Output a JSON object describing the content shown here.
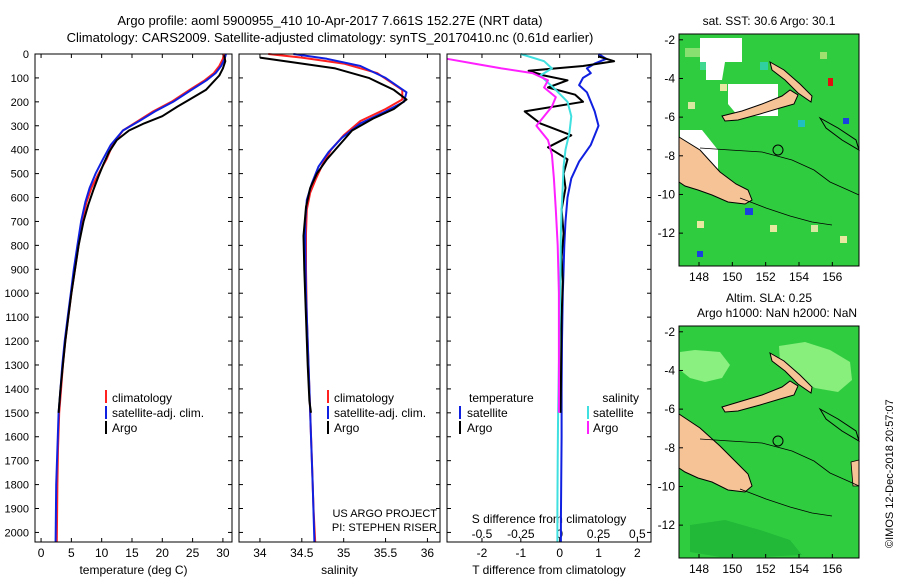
{
  "title": {
    "line1": "Argo profile: aoml 5900955_410 10-Apr-2017 7.661S 152.27E (NRT data)",
    "line2": "Climatology: CARS2009. Satellite-adjusted climatology: synTS_20170410.nc (0.61d earlier)"
  },
  "colors": {
    "argo": "#000000",
    "climatology": "#ff2020",
    "satellite": "#1020e0",
    "sat_salinity": "#40e0e0",
    "argo_salinity_diff": "#ff20ff",
    "land": "#f5c396",
    "ocean": "#30cc40"
  },
  "depth_axis": {
    "ticks": [
      0,
      100,
      200,
      300,
      400,
      500,
      600,
      700,
      800,
      900,
      1000,
      1100,
      1200,
      1300,
      1400,
      1500,
      1600,
      1700,
      1800,
      1900,
      2000
    ],
    "labels": [
      "0",
      "100",
      "200",
      "300",
      "400",
      "500",
      "600",
      "700",
      "800",
      "900",
      "1000",
      "1100",
      "1200",
      "1300",
      "1400",
      "1500",
      "1600",
      "1700",
      "1800",
      "1900",
      "2000"
    ],
    "range": [
      0,
      2040
    ]
  },
  "legend": {
    "climatology": "climatology",
    "satellite_adj": "satellite-adj. clim.",
    "argo": "Argo",
    "temperature_header": "temperature",
    "salinity_header": "salinity",
    "satellite": "satellite"
  },
  "credits": {
    "line1": "US ARGO PROJECT",
    "line2": "PI: STEPHEN RISER"
  },
  "map_top": {
    "title": "sat. SST: 30.6 Argo: 30.1",
    "xticks": [
      "148",
      "150",
      "152",
      "154",
      "156"
    ],
    "yticks": [
      "-2",
      "-4",
      "-6",
      "-8",
      "-10",
      "-12"
    ]
  },
  "map_bottom": {
    "title1": "Altim. SLA: 0.25",
    "title2": "Argo h1000: NaN h2000: NaN",
    "xticks": [
      "148",
      "150",
      "152",
      "154",
      "156"
    ],
    "yticks": [
      "-2",
      "-4",
      "-6",
      "-8",
      "-10",
      "-12"
    ]
  },
  "side_stamp": "©IMOS 12-Dec-2018 20:57:07",
  "chart_data": [
    {
      "type": "line",
      "title": "",
      "xlabel": "temperature (deg C)",
      "ylabel": "",
      "xlim": [
        -1,
        31.5
      ],
      "ylim": [
        2040,
        0
      ],
      "xticks": [
        0,
        5,
        10,
        15,
        20,
        25,
        30
      ],
      "xticklabels": [
        "0",
        "5",
        "10",
        "15",
        "20",
        "25",
        "30"
      ],
      "series": [
        {
          "name": "climatology",
          "color": "#ff2020",
          "x": [
            30.2,
            30.0,
            29.4,
            28.5,
            27.0,
            24.5,
            21.5,
            18.5,
            16.0,
            13.5,
            11.8,
            10.8,
            9.5,
            8.3,
            7.5,
            6.8,
            6.2,
            5.6,
            5.0,
            4.5,
            4.0,
            3.6,
            3.3,
            3.0,
            2.8,
            2.7,
            2.6
          ],
          "y": [
            0,
            20,
            50,
            80,
            110,
            150,
            200,
            240,
            280,
            320,
            380,
            440,
            500,
            560,
            620,
            700,
            800,
            900,
            1000,
            1100,
            1200,
            1300,
            1400,
            1500,
            1650,
            1800,
            2040
          ]
        },
        {
          "name": "satellite-adj. clim.",
          "color": "#1020e0",
          "x": [
            30.5,
            30.3,
            29.7,
            28.8,
            27.3,
            24.8,
            21.8,
            18.8,
            16.2,
            13.5,
            11.5,
            10.2,
            9.0,
            8.0,
            7.3,
            6.6,
            6.0,
            5.4,
            4.9,
            4.4,
            3.9,
            3.5,
            3.2,
            2.9,
            2.7,
            2.5,
            2.4
          ],
          "y": [
            0,
            20,
            50,
            80,
            110,
            150,
            200,
            240,
            280,
            320,
            380,
            440,
            500,
            560,
            620,
            700,
            800,
            900,
            1000,
            1100,
            1200,
            1300,
            1400,
            1500,
            1650,
            1800,
            2040
          ]
        },
        {
          "name": "Argo",
          "color": "#000000",
          "x": [
            30.2,
            30.4,
            30.0,
            29.4,
            28.3,
            27.2,
            24.5,
            22.5,
            20.0,
            17.0,
            14.5,
            12.5,
            11.2,
            10.3,
            9.5,
            8.6,
            7.8,
            7.0,
            6.2,
            5.6,
            5.0,
            4.5,
            4.0,
            3.6,
            3.2,
            2.9
          ],
          "y": [
            5,
            30,
            60,
            90,
            120,
            150,
            190,
            220,
            260,
            290,
            320,
            360,
            410,
            460,
            510,
            570,
            630,
            700,
            800,
            900,
            1000,
            1100,
            1200,
            1300,
            1400,
            1500
          ]
        }
      ]
    },
    {
      "type": "line",
      "title": "",
      "xlabel": "salinity",
      "ylabel": "",
      "xlim": [
        33.75,
        36.15
      ],
      "ylim": [
        2040,
        0
      ],
      "xticks": [
        34,
        34.5,
        35,
        35.5,
        36
      ],
      "xticklabels": [
        "34",
        "34.5",
        "35",
        "35.5",
        "36"
      ],
      "series": [
        {
          "name": "climatology",
          "color": "#ff2020",
          "x": [
            34.1,
            34.5,
            35.0,
            35.4,
            35.7,
            35.7,
            35.5,
            35.2,
            35.0,
            34.85,
            34.75,
            34.67,
            34.6,
            34.56,
            34.55,
            34.55,
            34.56,
            34.58,
            34.6,
            34.62,
            34.64,
            34.66
          ],
          "y": [
            0,
            15,
            40,
            80,
            150,
            190,
            230,
            280,
            340,
            400,
            460,
            520,
            580,
            650,
            750,
            900,
            1100,
            1300,
            1500,
            1700,
            1900,
            2040
          ]
        },
        {
          "name": "satellite-adj. clim.",
          "color": "#1020e0",
          "x": [
            34.4,
            34.8,
            35.2,
            35.5,
            35.75,
            35.72,
            35.5,
            35.2,
            34.98,
            34.82,
            34.7,
            34.62,
            34.56,
            34.54,
            34.54,
            34.55,
            34.57,
            34.59,
            34.61,
            34.63,
            34.65
          ],
          "y": [
            0,
            20,
            50,
            100,
            160,
            200,
            240,
            290,
            350,
            410,
            470,
            540,
            610,
            700,
            800,
            1000,
            1200,
            1400,
            1600,
            1800,
            2040
          ]
        },
        {
          "name": "Argo",
          "color": "#000000",
          "x": [
            34.0,
            34.4,
            34.9,
            35.3,
            35.6,
            35.75,
            35.6,
            35.35,
            35.1,
            34.95,
            34.8,
            34.68,
            34.6,
            34.55,
            34.52,
            34.53,
            34.55,
            34.57,
            34.59,
            34.61
          ],
          "y": [
            15,
            35,
            60,
            100,
            150,
            190,
            230,
            270,
            320,
            380,
            440,
            500,
            560,
            640,
            760,
            900,
            1100,
            1300,
            1450,
            1500
          ]
        }
      ]
    },
    {
      "type": "line",
      "title": "",
      "xlabel": "T difference from climatology",
      "ylabel": "",
      "xlim": [
        -2.9,
        2.35
      ],
      "ylim": [
        2040,
        0
      ],
      "xticks": [
        -2,
        -1,
        0,
        1,
        2
      ],
      "xticklabels": [
        "-2",
        "-1",
        "0",
        "1",
        "2"
      ],
      "secondary_xticklabels": [
        "-0.5",
        "-0.25",
        "0",
        "0.25",
        "0.5"
      ],
      "secondary_xlabel": "S difference from climatology",
      "series": [
        {
          "name": "temperature satellite",
          "color": "#1020e0",
          "x": [
            1.0,
            1.2,
            0.9,
            0.7,
            0.8,
            0.6,
            0.5,
            0.7,
            0.8,
            0.9,
            1.0,
            0.8,
            0.5,
            0.3,
            0.2,
            0.15,
            0.12,
            0.1,
            0.08,
            0.06,
            0.05,
            0.05,
            0.04,
            0.03,
            0.03
          ],
          "y": [
            0,
            20,
            40,
            60,
            80,
            100,
            130,
            160,
            200,
            240,
            300,
            380,
            450,
            520,
            600,
            700,
            800,
            900,
            1000,
            1200,
            1400,
            1600,
            1800,
            1950,
            2040
          ]
        },
        {
          "name": "temperature Argo",
          "color": "#000000",
          "x": [
            1.0,
            1.4,
            0.6,
            -0.8,
            -0.4,
            0.2,
            -0.3,
            0.4,
            0.6,
            -0.9,
            -0.5,
            0.3,
            -0.3,
            0.2,
            0.1,
            0.15,
            0.05,
            0.1,
            0.05,
            0.08,
            0.05,
            0.04,
            0.03,
            0.02
          ],
          "y": [
            10,
            30,
            50,
            70,
            90,
            110,
            140,
            170,
            200,
            240,
            290,
            340,
            390,
            440,
            500,
            560,
            650,
            750,
            850,
            950,
            1100,
            1250,
            1400,
            1500
          ]
        },
        {
          "name": "salinity satellite",
          "color": "#40e0e0",
          "x": [
            -1.0,
            -0.4,
            -0.2,
            -0.5,
            -0.3,
            -0.1,
            0.2,
            0.3,
            0.25,
            0.15,
            0.1,
            0.08,
            0.05,
            0.03,
            0.02,
            0.0,
            -0.02,
            -0.04,
            -0.05,
            -0.06,
            -0.06
          ],
          "y": [
            0,
            30,
            60,
            90,
            120,
            150,
            200,
            260,
            330,
            400,
            470,
            550,
            650,
            750,
            900,
            1100,
            1300,
            1500,
            1700,
            1900,
            2040
          ]
        },
        {
          "name": "salinity Argo",
          "color": "#ff20ff",
          "x": [
            -2.9,
            -2.2,
            -1.5,
            -0.7,
            -0.3,
            -0.4,
            -0.1,
            -0.2,
            -0.4,
            -0.6,
            -0.3,
            -0.2,
            -0.15,
            -0.1,
            -0.05,
            -0.02,
            -0.02
          ],
          "y": [
            20,
            40,
            60,
            80,
            110,
            140,
            180,
            220,
            260,
            300,
            360,
            420,
            520,
            650,
            800,
            1000,
            1500
          ]
        }
      ]
    }
  ]
}
